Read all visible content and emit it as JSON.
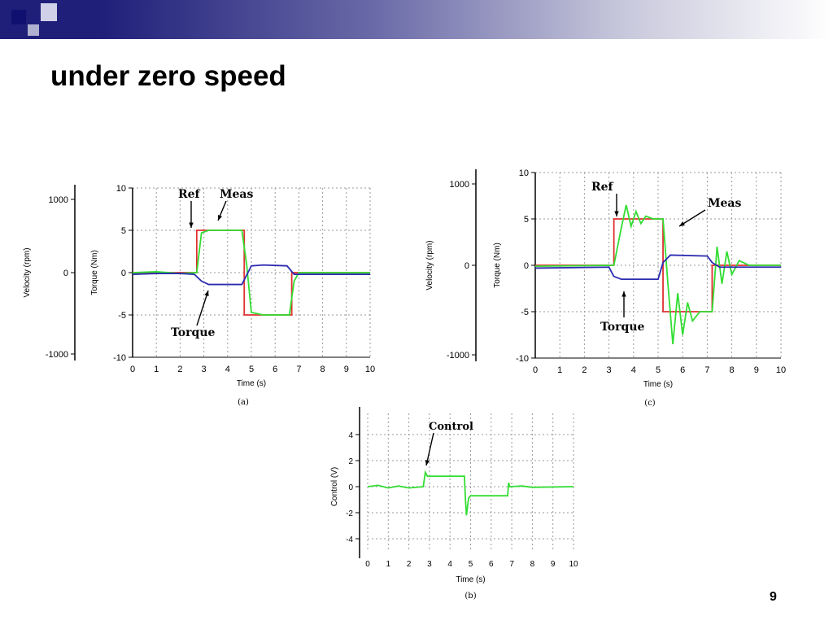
{
  "slide": {
    "title": "under zero speed",
    "page_number": "9"
  },
  "colors": {
    "band_dark": "#1f1f7a",
    "band_light": "#ffffff",
    "ref": "#e03030",
    "meas": "#33dd33",
    "torque": "#2b2bb0",
    "control": "#33dd33",
    "grid": "#9a9a9a"
  },
  "chart_data": [
    {
      "id": "a",
      "type": "line",
      "caption": "(a)",
      "xlabel": "Time (s)",
      "ylabel_left": "Velocity (rpm)",
      "ylabel_right": "Torque (Nm)",
      "xlim": [
        0,
        10
      ],
      "ylim_torque": [
        -10,
        10
      ],
      "ylim_velocity": [
        -1000,
        1000
      ],
      "x_ticks": [
        "0",
        "1",
        "2",
        "3",
        "4",
        "5",
        "6",
        "7",
        "8",
        "9",
        "10"
      ],
      "torque_ticks": [
        "10",
        "5",
        "0",
        "-5",
        "-10"
      ],
      "velocity_ticks": [
        "1000",
        "0",
        "-1000"
      ],
      "grid": true,
      "annotations": [
        {
          "text": "Ref",
          "target": "ref"
        },
        {
          "text": "Meas",
          "target": "meas"
        },
        {
          "text": "Torque",
          "target": "torque"
        }
      ],
      "series": [
        {
          "name": "Ref",
          "color_key": "ref",
          "x": [
            0,
            2.7,
            2.7,
            4.7,
            4.7,
            6.7,
            6.7,
            10
          ],
          "y": [
            0,
            0,
            5,
            5,
            -5,
            -5,
            0,
            0
          ]
        },
        {
          "name": "Meas",
          "color_key": "meas",
          "x": [
            0,
            1,
            2,
            2.7,
            2.9,
            3.2,
            4.6,
            4.8,
            5.0,
            5.5,
            6.6,
            6.8,
            7.0,
            10
          ],
          "y": [
            0,
            0.1,
            -0.1,
            0,
            4.7,
            5,
            5,
            1,
            -4.7,
            -5,
            -5,
            -1,
            0,
            0
          ]
        },
        {
          "name": "Torque",
          "color_key": "torque",
          "x": [
            0,
            1,
            2,
            2.6,
            2.9,
            3.2,
            4.6,
            4.8,
            5.0,
            5.5,
            6.5,
            6.8,
            7.0,
            10
          ],
          "y": [
            -0.2,
            -0.1,
            -0.1,
            -0.2,
            -1.0,
            -1.4,
            -1.4,
            -0.3,
            0.8,
            0.9,
            0.8,
            -0.2,
            -0.2,
            -0.2
          ]
        }
      ]
    },
    {
      "id": "c",
      "type": "line",
      "caption": "(c)",
      "xlabel": "Time (s)",
      "ylabel_left": "Velocity (rpm)",
      "ylabel_right": "Torque (Nm)",
      "xlim": [
        0,
        10
      ],
      "ylim_torque": [
        -10,
        10
      ],
      "ylim_velocity": [
        -1000,
        1000
      ],
      "x_ticks": [
        "0",
        "1",
        "2",
        "3",
        "4",
        "5",
        "6",
        "7",
        "8",
        "9",
        "10"
      ],
      "torque_ticks": [
        "10",
        "5",
        "0",
        "-5",
        "-10"
      ],
      "velocity_ticks": [
        "1000",
        "0",
        "-1000"
      ],
      "grid": true,
      "annotations": [
        {
          "text": "Ref",
          "target": "ref"
        },
        {
          "text": "Meas",
          "target": "meas"
        },
        {
          "text": "Torque",
          "target": "torque"
        }
      ],
      "series": [
        {
          "name": "Ref",
          "color_key": "ref",
          "x": [
            0,
            3.2,
            3.2,
            5.2,
            5.2,
            7.2,
            7.2,
            10
          ],
          "y": [
            0,
            0,
            5,
            5,
            -5,
            -5,
            0,
            0
          ]
        },
        {
          "name": "Meas",
          "color_key": "meas",
          "x": [
            0,
            3.2,
            3.5,
            3.7,
            3.9,
            4.1,
            4.3,
            4.5,
            4.8,
            5.2,
            5.4,
            5.6,
            5.8,
            6.0,
            6.2,
            6.4,
            6.7,
            7.2,
            7.4,
            7.6,
            7.8,
            8.0,
            8.3,
            8.7,
            10
          ],
          "y": [
            -0.1,
            0,
            4.0,
            6.5,
            4.2,
            5.8,
            4.5,
            5.3,
            5.0,
            5.0,
            -2.0,
            -8.5,
            -3.0,
            -7.5,
            -4.0,
            -6.0,
            -5.0,
            -5.0,
            2.0,
            -2.0,
            1.5,
            -1.0,
            0.5,
            0,
            0
          ]
        },
        {
          "name": "Torque",
          "color_key": "torque",
          "x": [
            0,
            3.0,
            3.2,
            3.5,
            5.0,
            5.2,
            5.5,
            7.0,
            7.2,
            7.5,
            10
          ],
          "y": [
            -0.3,
            -0.2,
            -1.2,
            -1.5,
            -1.5,
            0.3,
            1.1,
            1.0,
            0.3,
            -0.2,
            -0.2
          ]
        }
      ]
    },
    {
      "id": "b",
      "type": "line",
      "caption": "(b)",
      "xlabel": "Time (s)",
      "ylabel": "Control (V)",
      "xlim": [
        0,
        10
      ],
      "ylim": [
        -5,
        5
      ],
      "x_ticks": [
        "0",
        "1",
        "2",
        "3",
        "4",
        "5",
        "6",
        "7",
        "8",
        "9",
        "10"
      ],
      "y_ticks": [
        "4",
        "2",
        "0",
        "-2",
        "-4"
      ],
      "grid": true,
      "annotations": [
        {
          "text": "Control",
          "target": "control"
        }
      ],
      "series": [
        {
          "name": "Control",
          "color_key": "control",
          "x": [
            0,
            0.5,
            1.0,
            1.5,
            2.0,
            2.7,
            2.8,
            2.9,
            3.2,
            4.7,
            4.75,
            4.8,
            4.9,
            5.0,
            6.8,
            6.85,
            6.9,
            7.5,
            8.0,
            10
          ],
          "y": [
            0,
            0.1,
            -0.1,
            0.05,
            -0.1,
            0,
            1.1,
            0.8,
            0.8,
            0.8,
            -1.0,
            -2.2,
            -0.9,
            -0.7,
            -0.7,
            0.3,
            0,
            0.05,
            -0.05,
            0
          ]
        }
      ]
    }
  ]
}
